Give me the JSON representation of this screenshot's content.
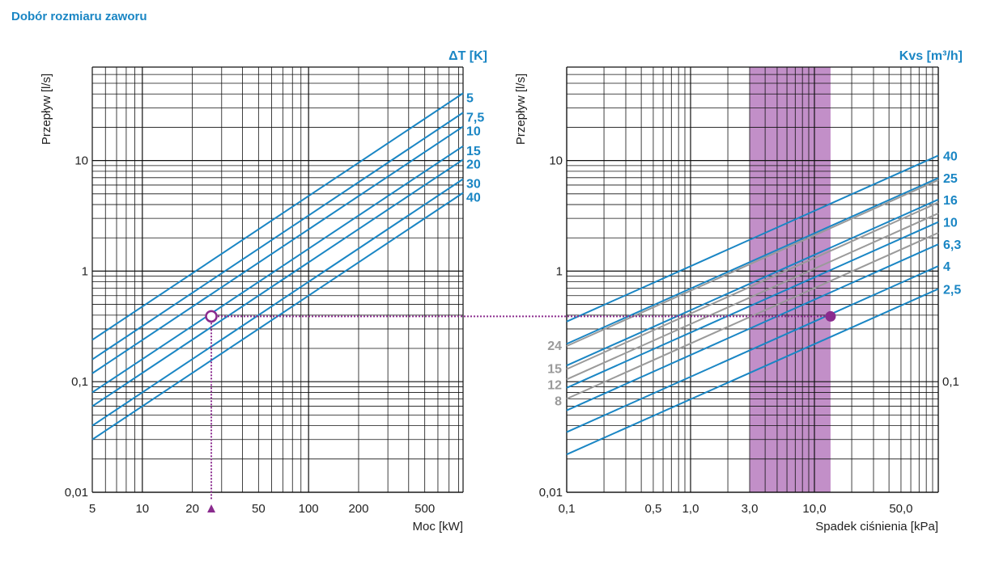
{
  "page": {
    "title": "Dobór rozmiaru zaworu"
  },
  "colors": {
    "blue": "#1a86c4",
    "gray": "#9a9a9a",
    "purple": "#8a2b8e",
    "band": "#c28fc8",
    "grid": "#111111"
  },
  "chart_data": [
    {
      "id": "left",
      "type": "line",
      "title": "",
      "xlabel": "Moc [kW]",
      "ylabel": "Przepływ [l/s]",
      "xscale": "log",
      "yscale": "log",
      "xlim": [
        5,
        850
      ],
      "ylim": [
        0.01,
        70
      ],
      "x_ticks": [
        {
          "v": 5,
          "label": "5"
        },
        {
          "v": 10,
          "label": "10"
        },
        {
          "v": 20,
          "label": "20"
        },
        {
          "v": 50,
          "label": "50"
        },
        {
          "v": 100,
          "label": "100"
        },
        {
          "v": 200,
          "label": "200"
        },
        {
          "v": 500,
          "label": "500"
        }
      ],
      "y_ticks": [
        {
          "v": 0.01,
          "label": "0,01"
        },
        {
          "v": 0.1,
          "label": "0,1"
        },
        {
          "v": 1,
          "label": "1"
        },
        {
          "v": 10,
          "label": "10"
        }
      ],
      "legend_title": "ΔT [K]",
      "series": [
        {
          "name": "5",
          "x": [
            5,
            850
          ],
          "y": [
            0.239,
            40.6
          ]
        },
        {
          "name": "7,5",
          "x": [
            5,
            850
          ],
          "y": [
            0.159,
            27.1
          ]
        },
        {
          "name": "10",
          "x": [
            5,
            850
          ],
          "y": [
            0.119,
            20.3
          ]
        },
        {
          "name": "15",
          "x": [
            5,
            850
          ],
          "y": [
            0.08,
            13.5
          ]
        },
        {
          "name": "20",
          "x": [
            5,
            850
          ],
          "y": [
            0.06,
            10.2
          ]
        },
        {
          "name": "30",
          "x": [
            5,
            850
          ],
          "y": [
            0.04,
            6.8
          ]
        },
        {
          "name": "40",
          "x": [
            5,
            850
          ],
          "y": [
            0.03,
            5.1
          ]
        }
      ],
      "annotations": {
        "marker_x": 26,
        "marker_y": 0.39,
        "arrow_label": "▲"
      }
    },
    {
      "id": "right",
      "type": "line",
      "title": "",
      "xlabel": "Spadek ciśnienia [kPa]",
      "ylabel": "Przepływ [l/s]",
      "xscale": "log",
      "yscale": "log",
      "xlim": [
        0.1,
        100
      ],
      "ylim": [
        0.01,
        70
      ],
      "x_ticks": [
        {
          "v": 0.1,
          "label": "0,1"
        },
        {
          "v": 0.5,
          "label": "0,5"
        },
        {
          "v": 1,
          "label": "1,0"
        },
        {
          "v": 3,
          "label": "3,0"
        },
        {
          "v": 10,
          "label": "10,0"
        },
        {
          "v": 50,
          "label": "50,0"
        }
      ],
      "y_ticks_left": [
        {
          "v": 0.01,
          "label": "0,01"
        },
        {
          "v": 1,
          "label": "1"
        },
        {
          "v": 10,
          "label": "10"
        }
      ],
      "y_ticks_right": [
        {
          "v": 0.1,
          "label": "0,1"
        }
      ],
      "legend_title": "Kvs [m³/h]",
      "band_kpa": [
        3,
        13.5
      ],
      "series": [
        {
          "name": "40",
          "color": "blue",
          "label_side": "right",
          "x": [
            0.1,
            100
          ],
          "y": [
            0.35,
            11.1
          ]
        },
        {
          "name": "25",
          "color": "blue",
          "label_side": "right",
          "x": [
            0.1,
            100
          ],
          "y": [
            0.22,
            6.95
          ]
        },
        {
          "name": "16",
          "color": "blue",
          "label_side": "right",
          "x": [
            0.1,
            100
          ],
          "y": [
            0.14,
            4.44
          ]
        },
        {
          "name": "10",
          "color": "blue",
          "label_side": "right",
          "x": [
            0.1,
            100
          ],
          "y": [
            0.088,
            2.78
          ]
        },
        {
          "name": "6,3",
          "color": "blue",
          "label_side": "right",
          "x": [
            0.1,
            100
          ],
          "y": [
            0.055,
            1.75
          ]
        },
        {
          "name": "4",
          "color": "blue",
          "label_side": "right",
          "x": [
            0.1,
            100
          ],
          "y": [
            0.035,
            1.11
          ]
        },
        {
          "name": "2,5",
          "color": "blue",
          "label_side": "right",
          "x": [
            0.1,
            100
          ],
          "y": [
            0.022,
            0.69
          ]
        },
        {
          "name": "24",
          "color": "gray",
          "label_side": "left",
          "x": [
            0.1,
            100
          ],
          "y": [
            0.21,
            6.67
          ]
        },
        {
          "name": "15",
          "color": "gray",
          "label_side": "left",
          "x": [
            0.1,
            100
          ],
          "y": [
            0.13,
            4.17
          ]
        },
        {
          "name": "12",
          "color": "gray",
          "label_side": "left",
          "x": [
            0.1,
            100
          ],
          "y": [
            0.105,
            3.33
          ]
        },
        {
          "name": "8",
          "color": "gray",
          "label_side": "left",
          "x": [
            0.1,
            100
          ],
          "y": [
            0.07,
            2.22
          ]
        }
      ],
      "annotations": {
        "marker_x": 13.5,
        "marker_y": 0.39
      }
    }
  ]
}
